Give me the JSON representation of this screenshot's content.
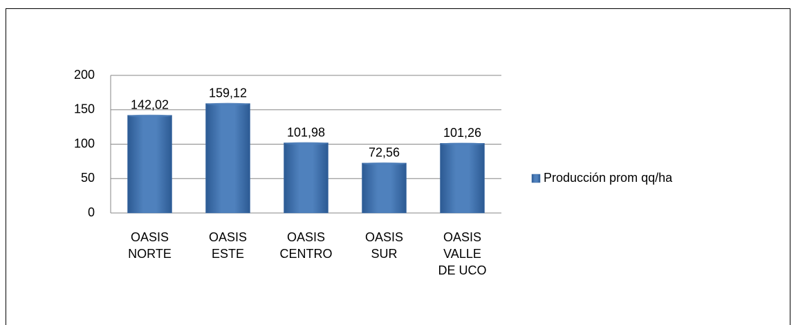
{
  "chart_data": {
    "type": "bar",
    "categories": [
      "OASIS NORTE",
      "OASIS ESTE",
      "OASIS CENTRO",
      "OASIS SUR",
      "OASIS VALLE DE UCO"
    ],
    "series": [
      {
        "name": "Producción prom qq/ha",
        "color": "#4f81bd",
        "values": [
          142.02,
          159.12,
          101.98,
          72.56,
          101.26
        ],
        "value_labels": [
          "142,02",
          "159,12",
          "101,98",
          "72,56",
          "101,26"
        ]
      }
    ],
    "ylim": [
      0,
      200
    ],
    "yticks": [
      0,
      50,
      100,
      150,
      200
    ],
    "grid": true,
    "legend": "right"
  }
}
